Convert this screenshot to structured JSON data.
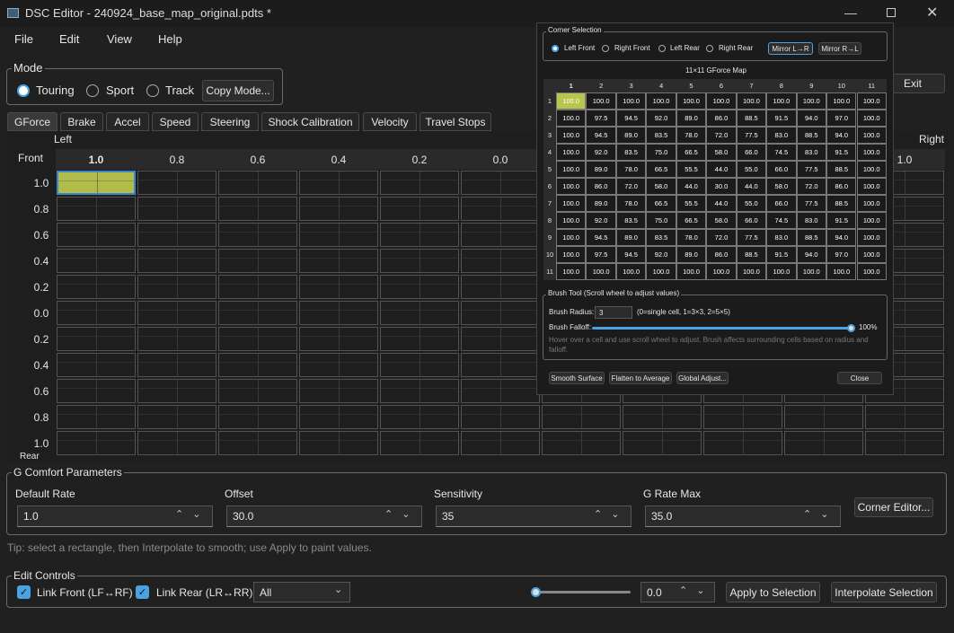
{
  "window": {
    "title": "DSC Editor - 240924_base_map_original.pdts *"
  },
  "menu": [
    "File",
    "Edit",
    "View",
    "Help"
  ],
  "mode": {
    "label": "Mode",
    "options": [
      "Touring",
      "Sport",
      "Track"
    ],
    "button": "Copy Mode..."
  },
  "exit": "Exit",
  "tabs": [
    "GForce",
    "Brake",
    "Accel",
    "Speed",
    "Steering",
    "Shock Calibration",
    "Velocity",
    "Travel Stops"
  ],
  "grid": {
    "left": "Left",
    "right": "Right",
    "front": "Front",
    "rear": "Rear",
    "columns": [
      "1.0",
      "0.8",
      "0.6",
      "0.4",
      "0.2",
      "0.0",
      null,
      null,
      null,
      null,
      "1.0"
    ],
    "rows": [
      "1.0",
      "0.8",
      "0.6",
      "0.4",
      "0.2",
      "0.0",
      "0.2",
      "0.4",
      "0.6",
      "0.8",
      "1.0"
    ]
  },
  "corner_editor": {
    "corner_group": "Corner Selection",
    "corners": [
      "Left Front",
      "Right Front",
      "Left Rear",
      "Right Rear"
    ],
    "mirror": [
      "Mirror L→R",
      "Mirror R→L"
    ],
    "map_title": "11×11 GForce Map",
    "map_columns": [
      "1",
      "2",
      "3",
      "4",
      "5",
      "6",
      "7",
      "8",
      "9",
      "10",
      "11"
    ],
    "map_rows": [
      "1",
      "2",
      "3",
      "4",
      "5",
      "6",
      "7",
      "8",
      "9",
      "10",
      "11"
    ],
    "map": [
      [
        "100.0",
        "100.0",
        "100.0",
        "100.0",
        "100.0",
        "100.0",
        "100.0",
        "100.0",
        "100.0",
        "100.0",
        "100.0"
      ],
      [
        "100.0",
        "97.5",
        "94.5",
        "92.0",
        "89.0",
        "86.0",
        "88.5",
        "91.5",
        "94.0",
        "97.0",
        "100.0"
      ],
      [
        "100.0",
        "94.5",
        "89.0",
        "83.5",
        "78.0",
        "72.0",
        "77.5",
        "83.0",
        "88.5",
        "94.0",
        "100.0"
      ],
      [
        "100.0",
        "92.0",
        "83.5",
        "75.0",
        "66.5",
        "58.0",
        "66.0",
        "74.5",
        "83.0",
        "91.5",
        "100.0"
      ],
      [
        "100.0",
        "89.0",
        "78.0",
        "66.5",
        "55.5",
        "44.0",
        "55.0",
        "66.0",
        "77.5",
        "88.5",
        "100.0"
      ],
      [
        "100.0",
        "86.0",
        "72.0",
        "58.0",
        "44.0",
        "30.0",
        "44.0",
        "58.0",
        "72.0",
        "86.0",
        "100.0"
      ],
      [
        "100.0",
        "89.0",
        "78.0",
        "66.5",
        "55.5",
        "44.0",
        "55.0",
        "66.0",
        "77.5",
        "88.5",
        "100.0"
      ],
      [
        "100.0",
        "92.0",
        "83.5",
        "75.0",
        "66.5",
        "58.0",
        "66.0",
        "74.5",
        "83.0",
        "91.5",
        "100.0"
      ],
      [
        "100.0",
        "94.5",
        "89.0",
        "83.5",
        "78.0",
        "72.0",
        "77.5",
        "83.0",
        "88.5",
        "94.0",
        "100.0"
      ],
      [
        "100.0",
        "97.5",
        "94.5",
        "92.0",
        "89.0",
        "86.0",
        "88.5",
        "91.5",
        "94.0",
        "97.0",
        "100.0"
      ],
      [
        "100.0",
        "100.0",
        "100.0",
        "100.0",
        "100.0",
        "100.0",
        "100.0",
        "100.0",
        "100.0",
        "100.0",
        "100.0"
      ]
    ],
    "brush": {
      "title": "Brush Tool (Scroll wheel to adjust values)",
      "radius_label": "Brush Radius:",
      "radius": "3",
      "radius_hint": "(0=single cell, 1=3×3, 2=5×5)",
      "falloff_label": "Brush Falloff:",
      "falloff": "100%",
      "hint": "Hover over a cell and use scroll wheel to adjust. Brush affects surrounding cells based on radius and falloff."
    },
    "buttons": [
      "Smooth Surface",
      "Flatten to Average",
      "Global Adjust..."
    ],
    "close": "Close"
  },
  "g_comfort": {
    "title": "G Comfort Parameters",
    "fields": [
      {
        "label": "Default Rate",
        "value": "1.0"
      },
      {
        "label": "Offset",
        "value": "30.0"
      },
      {
        "label": "Sensitivity",
        "value": "35"
      },
      {
        "label": "G Rate Max",
        "value": "35.0"
      }
    ],
    "button": "Corner Editor..."
  },
  "tip": "Tip: select a rectangle, then Interpolate to smooth; use Apply to paint values.",
  "edit_controls": {
    "title": "Edit Controls",
    "checks": [
      "Link Front (LF↔RF)",
      "Link Rear (LR↔RR)"
    ],
    "dropdown": "All",
    "value": "0.0",
    "buttons": [
      "Apply to Selection",
      "Interpolate Selection"
    ]
  }
}
